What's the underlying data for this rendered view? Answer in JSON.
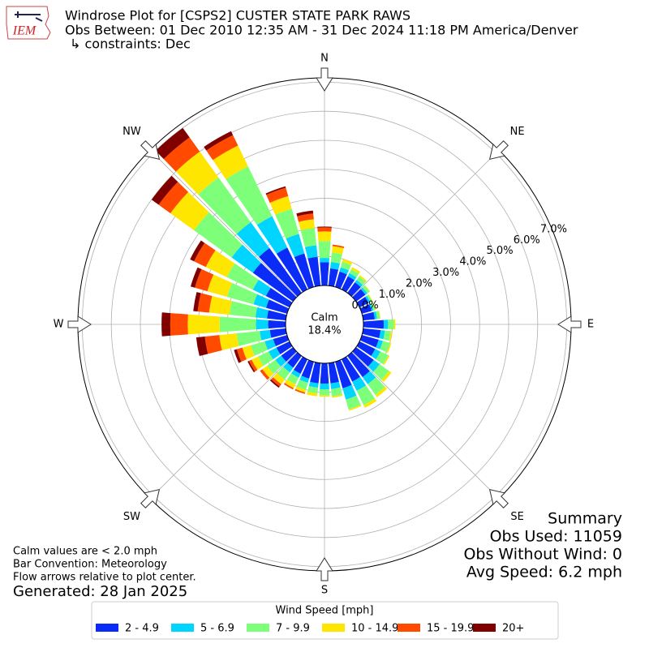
{
  "header": {
    "title": "Windrose Plot for [CSPS2] CUSTER STATE PARK RAWS",
    "subtitle": "Obs Between: 01 Dec 2010 12:35 AM - 31 Dec 2024 11:18 PM America/Denver",
    "constraints": "↳ constraints: Dec",
    "logo": "IEM"
  },
  "chart_data": {
    "type": "windrose",
    "x": [
      0,
      10,
      20,
      30,
      40,
      50,
      60,
      70,
      80,
      90,
      100,
      110,
      120,
      130,
      140,
      150,
      160,
      170,
      180,
      190,
      200,
      210,
      220,
      230,
      240,
      250,
      260,
      270,
      280,
      290,
      300,
      310,
      320,
      330,
      340,
      350
    ],
    "xticks": [
      {
        "value": 0,
        "label": "N"
      },
      {
        "value": 45,
        "label": "NE"
      },
      {
        "value": 90,
        "label": "E"
      },
      {
        "value": 135,
        "label": "SE"
      },
      {
        "value": 180,
        "label": "S"
      },
      {
        "value": 225,
        "label": "SW"
      },
      {
        "value": 270,
        "label": "W"
      },
      {
        "value": 315,
        "label": "NW"
      }
    ],
    "ylim": [
      0,
      7.15
    ],
    "yticks": [
      {
        "value": 0,
        "label": "0.0%"
      },
      {
        "value": 1,
        "label": "1.0%"
      },
      {
        "value": 2,
        "label": "2.0%"
      },
      {
        "value": 3,
        "label": "3.0%"
      },
      {
        "value": 4,
        "label": "4.0%"
      },
      {
        "value": 5,
        "label": "5.0%"
      },
      {
        "value": 6,
        "label": "6.0%"
      },
      {
        "value": 7,
        "label": "7.0%"
      }
    ],
    "grid": true,
    "calm_label": "Calm",
    "calm_value": 18.4,
    "calm_value_label": "18.4%",
    "legend_title": "Wind Speed [mph]",
    "series": [
      {
        "name": "2 - 4.9",
        "color": "#0a2cf6",
        "values": [
          0.8,
          0.6,
          0.55,
          0.5,
          0.45,
          0.4,
          0.35,
          0.35,
          0.4,
          0.7,
          0.6,
          0.6,
          0.6,
          0.75,
          0.9,
          0.85,
          0.95,
          0.7,
          0.7,
          0.7,
          0.6,
          0.55,
          0.5,
          0.5,
          0.5,
          0.5,
          0.55,
          0.6,
          0.65,
          0.75,
          0.9,
          1.7,
          1.9,
          1.6,
          1.2,
          1.0
        ]
      },
      {
        "name": "5 - 6.9",
        "color": "#00d5ff",
        "values": [
          0.15,
          0.22,
          0.15,
          0.12,
          0.1,
          0.08,
          0.07,
          0.06,
          0.08,
          0.15,
          0.15,
          0.15,
          0.2,
          0.25,
          0.3,
          0.35,
          0.4,
          0.2,
          0.2,
          0.15,
          0.15,
          0.15,
          0.2,
          0.25,
          0.3,
          0.3,
          0.35,
          0.42,
          0.4,
          0.45,
          0.5,
          0.9,
          1.1,
          1.2,
          0.7,
          0.4
        ]
      },
      {
        "name": "7 - 9.9",
        "color": "#7dff7a",
        "values": [
          0.58,
          0.33,
          0.2,
          0.15,
          0.15,
          0.1,
          0.06,
          0.07,
          0.1,
          0.2,
          0.2,
          0.25,
          0.3,
          0.4,
          0.45,
          0.55,
          0.35,
          0.25,
          0.2,
          0.2,
          0.25,
          0.25,
          0.3,
          0.35,
          0.4,
          0.5,
          0.8,
          1.25,
          0.9,
          0.95,
          1.0,
          1.6,
          1.9,
          1.9,
          0.9,
          0.6
        ]
      },
      {
        "name": "10 - 14.9",
        "color": "#ffe600",
        "values": [
          0.33,
          0.22,
          0.1,
          0.08,
          0.05,
          0.02,
          0.02,
          0.02,
          0.02,
          0.05,
          0.05,
          0.05,
          0.05,
          0.1,
          0.1,
          0.1,
          0.05,
          0.05,
          0.05,
          0.1,
          0.1,
          0.15,
          0.2,
          0.2,
          0.25,
          0.3,
          0.6,
          1.1,
          0.7,
          0.7,
          0.8,
          1.0,
          1.1,
          0.8,
          0.45,
          0.3
        ]
      },
      {
        "name": "15 - 19.9",
        "color": "#ff4a00",
        "values": [
          0.14,
          0.05,
          0,
          0,
          0,
          0,
          0,
          0,
          0,
          0,
          0,
          0,
          0,
          0,
          0,
          0,
          0,
          0,
          0,
          0,
          0.05,
          0.05,
          0.1,
          0.1,
          0.1,
          0.2,
          0.5,
          0.6,
          0.4,
          0.45,
          0.45,
          0.5,
          0.6,
          0.4,
          0.3,
          0.2
        ]
      },
      {
        "name": "20+",
        "color": "#800000",
        "values": [
          0.03,
          0,
          0,
          0,
          0,
          0,
          0,
          0,
          0,
          0,
          0,
          0,
          0,
          0,
          0,
          0,
          0,
          0,
          0,
          0,
          0,
          0,
          0.05,
          0,
          0.05,
          0.1,
          0.3,
          0.3,
          0.15,
          0.15,
          0.15,
          0.3,
          0.4,
          0.15,
          0.05,
          0.1
        ]
      }
    ]
  },
  "notes": [
    "Calm values are < 2.0 mph",
    "Bar Convention: Meteorology",
    "Flow arrows relative to plot center."
  ],
  "generated": "Generated: 28 Jan 2025",
  "summary": {
    "title": "Summary",
    "lines": [
      "Obs Used: 11059",
      "Obs Without Wind: 0",
      "Avg Speed: 6.2 mph"
    ]
  }
}
